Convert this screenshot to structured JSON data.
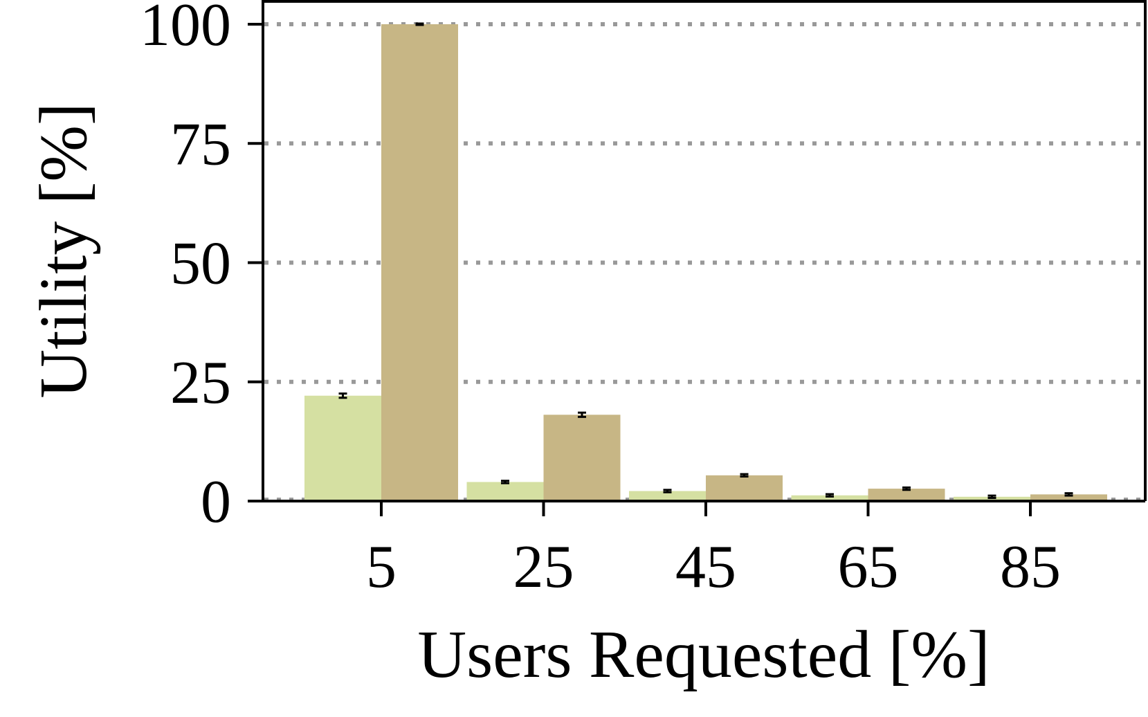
{
  "chart_data": {
    "type": "bar",
    "xlabel": "Users Requested [%]",
    "ylabel": "Utility [%]",
    "categories": [
      "5",
      "25",
      "45",
      "65",
      "85"
    ],
    "ylim": [
      0,
      100
    ],
    "yticks": [
      "0",
      "25",
      "50",
      "75",
      "100"
    ],
    "ytick_values": [
      0,
      25,
      50,
      75,
      100
    ],
    "grid": "horizontal dotted",
    "series": [
      {
        "color": "#d5e0a2",
        "values": [
          22.1,
          4.0,
          2.1,
          1.2,
          0.9
        ],
        "errors": [
          0.3,
          0.1,
          0.1,
          0.1,
          0.1
        ]
      },
      {
        "color": "#c7b685",
        "values": [
          100.0,
          18.1,
          5.4,
          2.6,
          1.4
        ],
        "errors": [
          0.0,
          0.3,
          0.1,
          0.1,
          0.1
        ]
      }
    ]
  }
}
